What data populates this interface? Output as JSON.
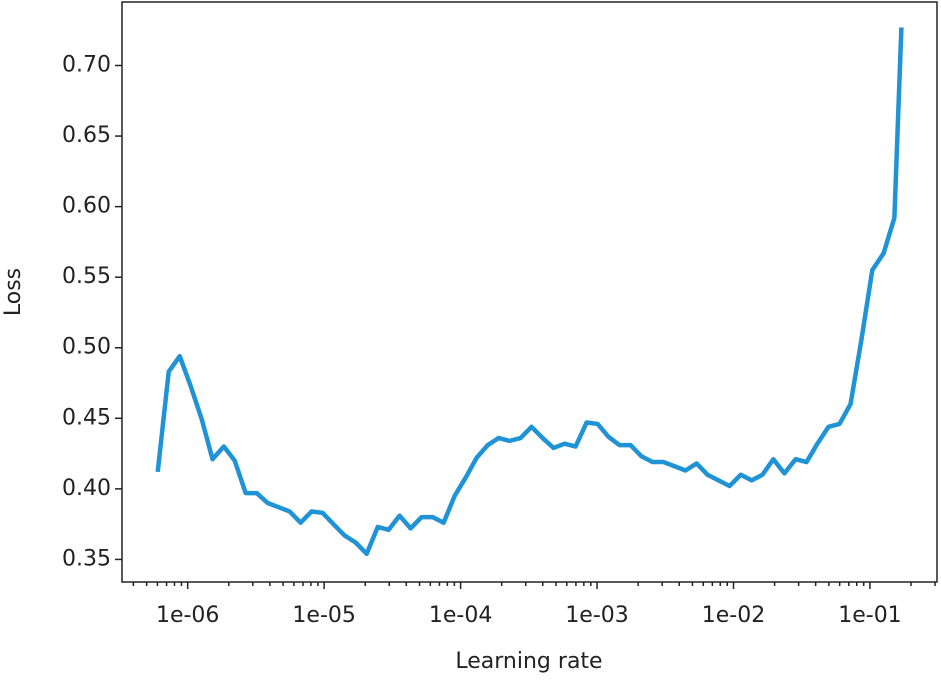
{
  "chart_data": {
    "type": "line",
    "xlabel": "Learning rate",
    "ylabel": "Loss",
    "xscale": "log",
    "color": "#1f93d6",
    "x": [
      6.03e-07,
      7.26e-07,
      8.74e-07,
      1.05e-06,
      1.27e-06,
      1.52e-06,
      1.84e-06,
      2.21e-06,
      2.66e-06,
      3.2e-06,
      3.85e-06,
      4.64e-06,
      5.58e-06,
      6.72e-06,
      8.09e-06,
      9.74e-06,
      1.17e-05,
      1.41e-05,
      1.7e-05,
      2.05e-05,
      2.47e-05,
      2.97e-05,
      3.57e-05,
      4.3e-05,
      5.18e-05,
      6.24e-05,
      7.51e-05,
      9.04e-05,
      0.000109,
      0.000131,
      0.000158,
      0.00019,
      0.000229,
      0.000275,
      0.000331,
      0.000399,
      0.00048,
      0.000578,
      0.000696,
      0.000838,
      0.00101,
      0.00121,
      0.00146,
      0.00176,
      0.00212,
      0.00255,
      0.00307,
      0.0037,
      0.00445,
      0.00536,
      0.00645,
      0.00777,
      0.00935,
      0.0113,
      0.0136,
      0.0163,
      0.0196,
      0.0236,
      0.0285,
      0.0343,
      0.0412,
      0.0497,
      0.0598,
      0.072,
      0.0867,
      0.104,
      0.126,
      0.151,
      0.17
    ],
    "values": [
      0.412,
      0.483,
      0.494,
      0.473,
      0.449,
      0.421,
      0.43,
      0.42,
      0.397,
      0.397,
      0.39,
      0.387,
      0.384,
      0.376,
      0.384,
      0.383,
      0.375,
      0.367,
      0.362,
      0.354,
      0.373,
      0.371,
      0.381,
      0.372,
      0.38,
      0.38,
      0.376,
      0.395,
      0.408,
      0.422,
      0.431,
      0.436,
      0.434,
      0.436,
      0.444,
      0.436,
      0.429,
      0.432,
      0.43,
      0.447,
      0.446,
      0.437,
      0.431,
      0.431,
      0.423,
      0.419,
      0.419,
      0.416,
      0.413,
      0.418,
      0.41,
      0.406,
      0.402,
      0.41,
      0.406,
      0.41,
      0.421,
      0.411,
      0.421,
      0.419,
      0.432,
      0.444,
      0.446,
      0.46,
      0.506,
      0.555,
      0.567,
      0.592,
      0.727
    ],
    "xlim": [
      3.3e-07,
      0.31
    ],
    "ylim": [
      0.334,
      0.745
    ],
    "xticks": [
      {
        "value": 1e-06,
        "label": "1e-06"
      },
      {
        "value": 1e-05,
        "label": "1e-05"
      },
      {
        "value": 0.0001,
        "label": "1e-04"
      },
      {
        "value": 0.001,
        "label": "1e-03"
      },
      {
        "value": 0.01,
        "label": "1e-02"
      },
      {
        "value": 0.1,
        "label": "1e-01"
      }
    ],
    "xminorticks": [
      4e-07,
      5e-07,
      6e-07,
      7e-07,
      8e-07,
      9e-07,
      2e-06,
      3e-06,
      4e-06,
      5e-06,
      6e-06,
      7e-06,
      8e-06,
      9e-06,
      2e-05,
      3e-05,
      4e-05,
      5e-05,
      6e-05,
      7e-05,
      8e-05,
      9e-05,
      0.0002,
      0.0003,
      0.0004,
      0.0005,
      0.0006,
      0.0007,
      0.0008,
      0.0009,
      0.002,
      0.003,
      0.004,
      0.005,
      0.006,
      0.007,
      0.008,
      0.009,
      0.02,
      0.03,
      0.04,
      0.05,
      0.06,
      0.07,
      0.08,
      0.09,
      0.2,
      0.3
    ],
    "yticks": [
      0.35,
      {
        "value": 0.4,
        "label": "0.40"
      },
      0.45,
      {
        "value": 0.5,
        "label": "0.50"
      },
      0.55,
      {
        "value": 0.6,
        "label": "0.60"
      },
      0.65,
      {
        "value": 0.7,
        "label": "0.70"
      }
    ]
  }
}
